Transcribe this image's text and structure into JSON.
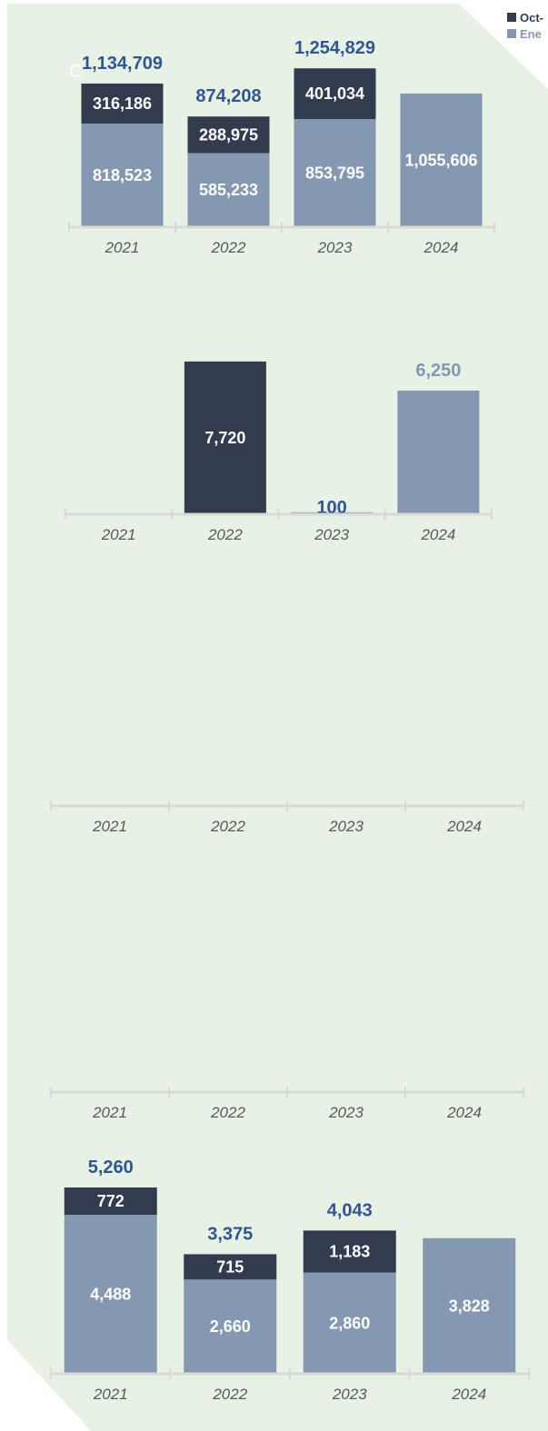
{
  "colors": {
    "background": "#e7f1e4",
    "oct": "#323c4e",
    "ene": "#8598b1",
    "total_label": "#2f5597",
    "axis": "#d9d9d9",
    "tick_text": "#595959"
  },
  "legend": [
    {
      "label": "Oct-",
      "color": "#323c4e"
    },
    {
      "label": "Ene",
      "color": "#8598b1"
    }
  ],
  "stray_mark": "C",
  "chart_data": [
    {
      "type": "bar",
      "stacked": true,
      "categories": [
        "2021",
        "2022",
        "2023",
        "2024"
      ],
      "series": [
        {
          "values": [
            818523,
            585233,
            853795,
            1055606
          ],
          "labels": [
            "818,523",
            "585,233",
            "853,795",
            "1,055,606"
          ],
          "color": "#8598b1"
        },
        {
          "values": [
            316186,
            288975,
            401034,
            null
          ],
          "labels": [
            "316,186",
            "288,975",
            "401,034",
            ""
          ],
          "color": "#323c4e"
        }
      ],
      "totals": [
        "1,134,709",
        "874,208",
        "1,254,829",
        ""
      ],
      "ylim": [
        0,
        1400000
      ]
    },
    {
      "type": "bar",
      "categories": [
        "2021",
        "2022",
        "2023",
        "2024"
      ],
      "series": [
        {
          "values": [
            null,
            7720,
            null,
            null
          ],
          "labels": [
            "",
            "7,720",
            "",
            ""
          ],
          "color": "#323c4e"
        },
        {
          "values": [
            null,
            null,
            100,
            6250
          ],
          "labels": [
            "",
            "",
            "",
            ""
          ],
          "color": "#8598b1"
        }
      ],
      "totals": [
        "",
        "",
        "100",
        "6,250"
      ],
      "total_colors": [
        "",
        "",
        "#2f5597",
        "#8598b1"
      ],
      "ylim": [
        0,
        9000
      ]
    },
    {
      "type": "bar",
      "categories": [
        "2021",
        "2022",
        "2023",
        "2024"
      ],
      "series": []
    },
    {
      "type": "bar",
      "categories": [
        "2021",
        "2022",
        "2023",
        "2024"
      ],
      "series": []
    },
    {
      "type": "bar",
      "stacked": true,
      "categories": [
        "2021",
        "2022",
        "2023",
        "2024"
      ],
      "series": [
        {
          "values": [
            4488,
            2660,
            2860,
            3828
          ],
          "labels": [
            "4,488",
            "2,660",
            "2,860",
            "3,828"
          ],
          "color": "#8598b1"
        },
        {
          "values": [
            772,
            715,
            1183,
            null
          ],
          "labels": [
            "772",
            "715",
            "1,183",
            ""
          ],
          "color": "#323c4e"
        }
      ],
      "totals": [
        "5,260",
        "3,375",
        "4,043",
        ""
      ],
      "ylim": [
        0,
        5900
      ]
    }
  ]
}
